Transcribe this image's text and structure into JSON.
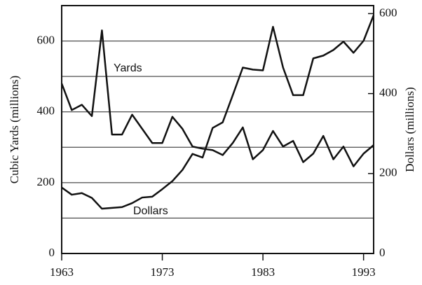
{
  "chart_data": {
    "type": "line",
    "x": [
      1963,
      1964,
      1965,
      1966,
      1967,
      1968,
      1969,
      1970,
      1971,
      1972,
      1973,
      1974,
      1975,
      1976,
      1977,
      1978,
      1979,
      1980,
      1981,
      1982,
      1983,
      1984,
      1985,
      1986,
      1987,
      1988,
      1989,
      1990,
      1991,
      1992,
      1993,
      1994
    ],
    "series": [
      {
        "name": "Yards",
        "color": "#111111",
        "axis": "y",
        "values": [
          480,
          405,
          420,
          388,
          630,
          336,
          336,
          392,
          352,
          312,
          312,
          386,
          352,
          302,
          296,
          292,
          278,
          312,
          356,
          266,
          292,
          346,
          302,
          318,
          258,
          282,
          332,
          266,
          302,
          246,
          282,
          306
        ]
      },
      {
        "name": "Dollars",
        "color": "#111111",
        "axis": "y2",
        "values": [
          165,
          147,
          151,
          139,
          112,
          114,
          116,
          126,
          140,
          142,
          161,
          181,
          209,
          249,
          240,
          314,
          328,
          396,
          465,
          460,
          458,
          567,
          465,
          396,
          396,
          488,
          495,
          509,
          530,
          502,
          532,
          596
        ]
      }
    ],
    "xlim": [
      1963,
      1994
    ],
    "xticks": [
      1963,
      1973,
      1983,
      1993
    ],
    "ylabel": "Cubic Yards (millions)",
    "ylim": [
      0,
      700
    ],
    "yticks": [
      0,
      200,
      400,
      600
    ],
    "minor_yticks": [
      100,
      300,
      500
    ],
    "y2label": "Dollars (millions)",
    "y2lim": [
      0,
      620
    ],
    "y2ticks": [
      0,
      200,
      400,
      600
    ],
    "grid": true
  }
}
